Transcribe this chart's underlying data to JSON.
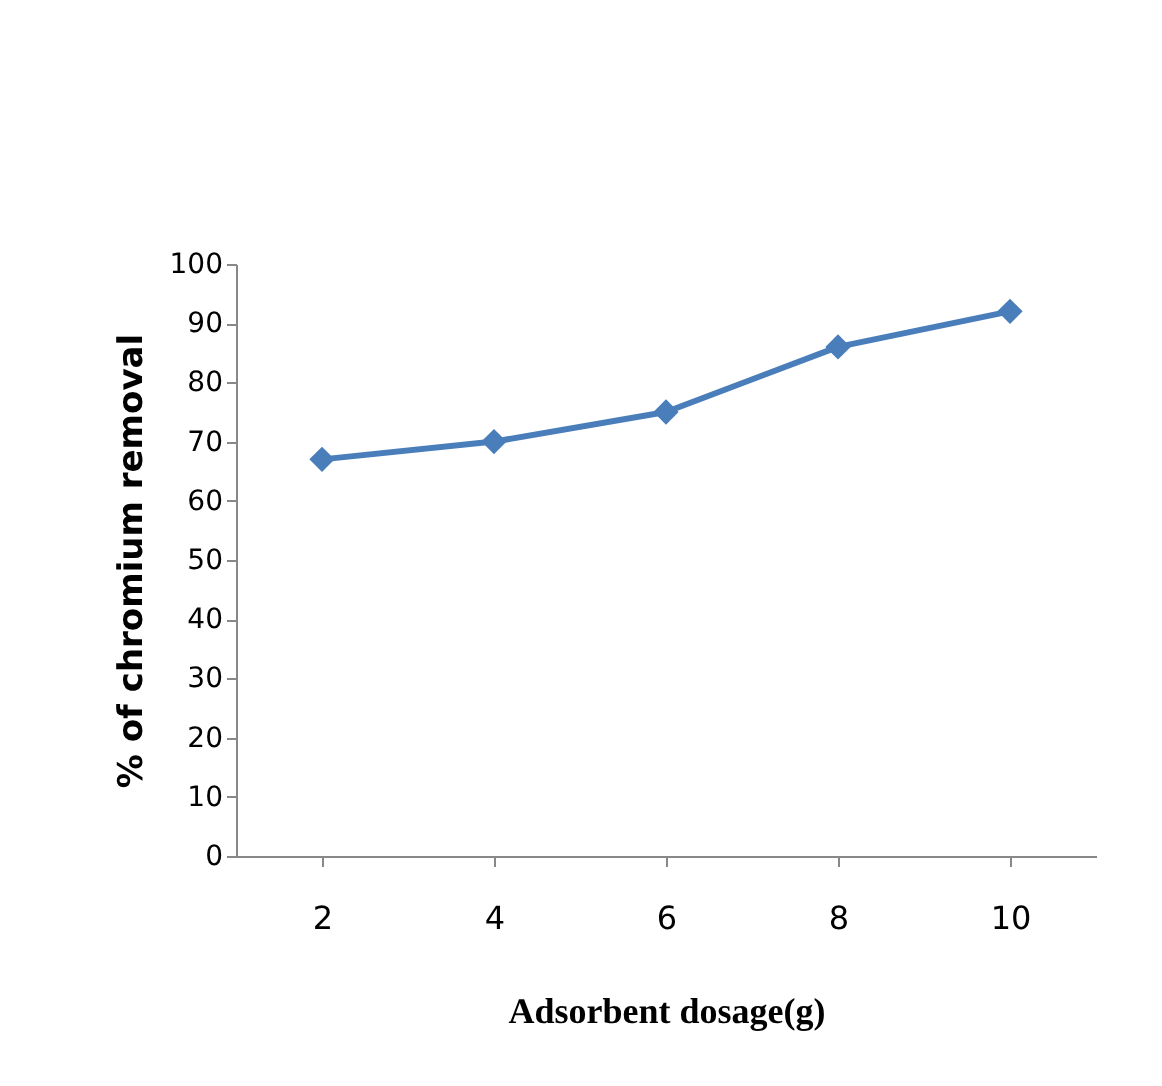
{
  "chart_data": {
    "type": "line",
    "xlabel": "Adsorbent dosage(g)",
    "ylabel": "% of chromium removal",
    "categories": [
      "2",
      "4",
      "6",
      "8",
      "10"
    ],
    "series": [
      {
        "color": "#4a7ebb",
        "values": [
          67,
          70,
          75,
          86,
          92
        ]
      }
    ],
    "ylim": [
      0,
      100
    ],
    "yticks": [
      0,
      10,
      20,
      30,
      40,
      50,
      60,
      70,
      80,
      90,
      100
    ],
    "grid": false,
    "marker": "diamond",
    "line_style": "solid"
  }
}
